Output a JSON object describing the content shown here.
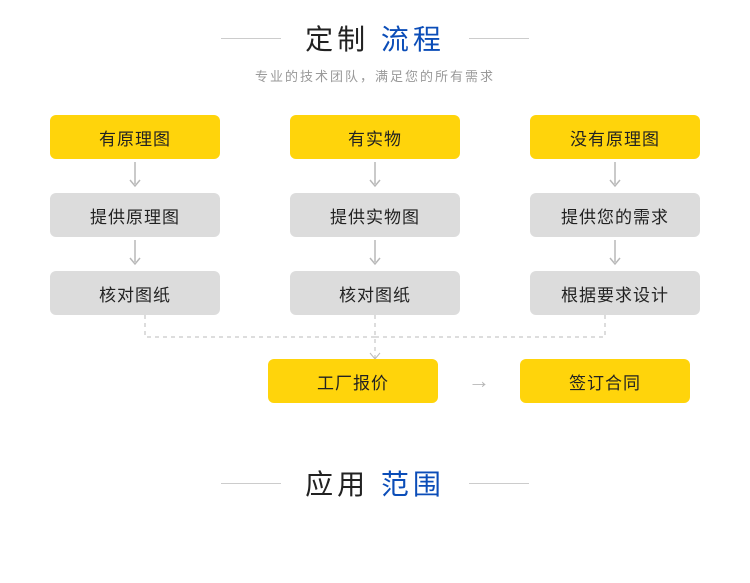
{
  "header1": {
    "title_part1": "定制",
    "title_part2": "流程",
    "title_color1": "#222222",
    "title_color2": "#0b4db8",
    "subtitle": "专业的技术团队，满足您的所有需求"
  },
  "header2": {
    "title_part1": "应用",
    "title_part2": "范围",
    "title_color1": "#222222",
    "title_color2": "#0b4db8"
  },
  "flow": {
    "type": "flowchart",
    "columns": [
      {
        "start": {
          "label": "有原理图",
          "bg": "#ffd40b",
          "color": "#222222"
        },
        "step1": {
          "label": "提供原理图",
          "bg": "#dcdcdc",
          "color": "#222222"
        },
        "step2": {
          "label": "核对图纸",
          "bg": "#dcdcdc",
          "color": "#222222"
        }
      },
      {
        "start": {
          "label": "有实物",
          "bg": "#ffd40b",
          "color": "#222222"
        },
        "step1": {
          "label": "提供实物图",
          "bg": "#dcdcdc",
          "color": "#222222"
        },
        "step2": {
          "label": "核对图纸",
          "bg": "#dcdcdc",
          "color": "#222222"
        }
      },
      {
        "start": {
          "label": "没有原理图",
          "bg": "#ffd40b",
          "color": "#222222"
        },
        "step1": {
          "label": "提供您的需求",
          "bg": "#dcdcdc",
          "color": "#222222"
        },
        "step2": {
          "label": "根据要求设计",
          "bg": "#dcdcdc",
          "color": "#222222"
        }
      }
    ],
    "final": {
      "quote": {
        "label": "工厂报价",
        "bg": "#ffd40b",
        "color": "#222222"
      },
      "contract": {
        "label": "签订合同",
        "bg": "#ffd40b",
        "color": "#222222"
      }
    },
    "arrow_color": "#b8b8b8",
    "dash_color": "#bbbbbb"
  }
}
